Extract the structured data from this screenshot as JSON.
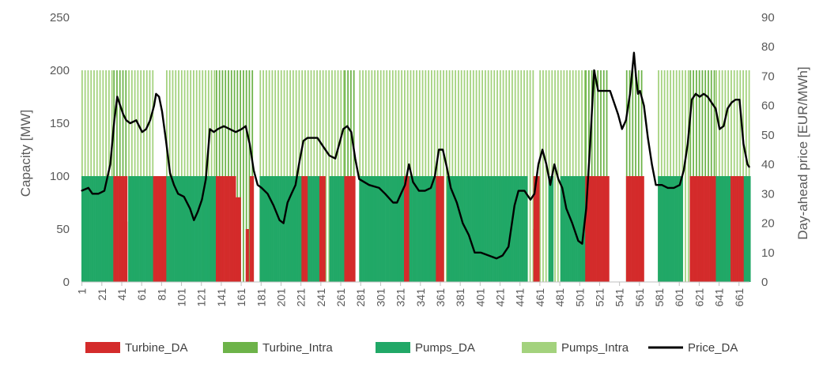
{
  "chart_data": {
    "type": "bar+line",
    "title": "",
    "xlabel": "",
    "ylabel_left": "Capacity [MW]",
    "ylabel_right": "Day-ahead price [EUR/MWh]",
    "ylim_left": [
      0,
      250
    ],
    "yticks_left": [
      0,
      50,
      100,
      150,
      200,
      250
    ],
    "ylim_right": [
      0,
      90
    ],
    "yticks_right": [
      0,
      10,
      20,
      30,
      40,
      50,
      60,
      70,
      80,
      90
    ],
    "xlim": [
      1,
      672
    ],
    "xticks": [
      1,
      21,
      41,
      61,
      81,
      101,
      121,
      141,
      161,
      181,
      201,
      221,
      241,
      261,
      281,
      301,
      321,
      341,
      361,
      381,
      401,
      421,
      441,
      461,
      481,
      501,
      521,
      541,
      561,
      581,
      601,
      621,
      641,
      661
    ],
    "grid": false,
    "legend_position": "bottom",
    "legend": [
      "Turbine_DA",
      "Turbine_Intra",
      "Pumps_DA",
      "Pumps_Intra",
      "Price_DA"
    ],
    "colors": {
      "Turbine_DA": "#d42b2b",
      "Turbine_Intra": "#6db349",
      "Pumps_DA": "#21a867",
      "Pumps_Intra": "#a3d27d",
      "Price_DA": "#000000"
    },
    "bar_series": [
      {
        "name": "Pumps_DA",
        "segments": [
          {
            "from": 1,
            "to": 32,
            "value": 100
          },
          {
            "from": 48,
            "to": 72,
            "value": 100
          },
          {
            "from": 86,
            "to": 135,
            "value": 100
          },
          {
            "from": 180,
            "to": 222,
            "value": 100
          },
          {
            "from": 228,
            "to": 240,
            "value": 100
          },
          {
            "from": 250,
            "to": 268,
            "value": 100
          },
          {
            "from": 280,
            "to": 324,
            "value": 100
          },
          {
            "from": 330,
            "to": 356,
            "value": 100
          },
          {
            "from": 368,
            "to": 448,
            "value": 100
          },
          {
            "from": 470,
            "to": 474,
            "value": 100
          },
          {
            "from": 482,
            "to": 506,
            "value": 100
          },
          {
            "from": 580,
            "to": 604,
            "value": 100
          },
          {
            "from": 638,
            "to": 652,
            "value": 100
          },
          {
            "from": 666,
            "to": 672,
            "value": 100
          }
        ]
      },
      {
        "name": "Turbine_DA",
        "segments": [
          {
            "from": 33,
            "to": 46,
            "value": 100
          },
          {
            "from": 42,
            "to": 46,
            "value": 57
          },
          {
            "from": 73,
            "to": 85,
            "value": 100
          },
          {
            "from": 136,
            "to": 155,
            "value": 100
          },
          {
            "from": 156,
            "to": 160,
            "value": 80
          },
          {
            "from": 166,
            "to": 168,
            "value": 50
          },
          {
            "from": 170,
            "to": 173,
            "value": 100
          },
          {
            "from": 222,
            "to": 227,
            "value": 100
          },
          {
            "from": 240,
            "to": 245,
            "value": 100
          },
          {
            "from": 240,
            "to": 242,
            "value": 57
          },
          {
            "from": 265,
            "to": 275,
            "value": 100
          },
          {
            "from": 325,
            "to": 329,
            "value": 100
          },
          {
            "from": 357,
            "to": 364,
            "value": 100
          },
          {
            "from": 455,
            "to": 460,
            "value": 100
          },
          {
            "from": 455,
            "to": 458,
            "value": 50
          },
          {
            "from": 507,
            "to": 530,
            "value": 100
          },
          {
            "from": 548,
            "to": 565,
            "value": 100
          },
          {
            "from": 612,
            "to": 637,
            "value": 100
          },
          {
            "from": 653,
            "to": 665,
            "value": 100
          }
        ]
      },
      {
        "name": "Turbine_Intra",
        "segments": [
          {
            "from": 33,
            "to": 46,
            "value": 200
          },
          {
            "from": 136,
            "to": 173,
            "value": 200
          },
          {
            "from": 265,
            "to": 275,
            "value": 200
          },
          {
            "from": 507,
            "to": 530,
            "value": 200
          },
          {
            "from": 548,
            "to": 565,
            "value": 200
          },
          {
            "from": 612,
            "to": 637,
            "value": 200
          }
        ]
      },
      {
        "name": "Pumps_Intra",
        "segments": [
          {
            "from": 1,
            "to": 32,
            "value": 200
          },
          {
            "from": 48,
            "to": 72,
            "value": 200
          },
          {
            "from": 86,
            "to": 135,
            "value": 200
          },
          {
            "from": 180,
            "to": 264,
            "value": 200
          },
          {
            "from": 280,
            "to": 454,
            "value": 200
          },
          {
            "from": 461,
            "to": 506,
            "value": 200
          },
          {
            "from": 580,
            "to": 611,
            "value": 200
          },
          {
            "from": 638,
            "to": 672,
            "value": 200
          }
        ]
      }
    ],
    "line_series": {
      "name": "Price_DA",
      "axis": "right",
      "x": [
        1,
        8,
        12,
        18,
        24,
        30,
        34,
        37,
        40,
        43,
        46,
        50,
        56,
        62,
        66,
        70,
        74,
        76,
        79,
        82,
        86,
        90,
        94,
        98,
        104,
        110,
        114,
        118,
        122,
        126,
        130,
        134,
        138,
        144,
        150,
        156,
        162,
        166,
        170,
        174,
        178,
        182,
        188,
        194,
        200,
        204,
        208,
        212,
        216,
        220,
        224,
        228,
        232,
        238,
        244,
        250,
        256,
        260,
        264,
        268,
        272,
        276,
        280,
        290,
        300,
        306,
        314,
        318,
        322,
        326,
        330,
        334,
        340,
        346,
        352,
        356,
        360,
        364,
        368,
        372,
        378,
        384,
        390,
        396,
        402,
        410,
        418,
        424,
        430,
        436,
        440,
        446,
        452,
        456,
        460,
        464,
        468,
        472,
        476,
        480,
        484,
        488,
        494,
        500,
        504,
        508,
        512,
        516,
        520,
        526,
        532,
        536,
        540,
        544,
        548,
        552,
        556,
        558,
        560,
        562,
        566,
        570,
        574,
        578,
        584,
        590,
        596,
        602,
        606,
        610,
        614,
        618,
        622,
        626,
        630,
        634,
        638,
        642,
        646,
        650,
        654,
        658,
        662,
        666,
        670,
        672
      ],
      "y": [
        31,
        32,
        30,
        30,
        31,
        40,
        55,
        63,
        60,
        57,
        55,
        54,
        55,
        51,
        52,
        55,
        60,
        64,
        63,
        58,
        48,
        37,
        33,
        30,
        29,
        25,
        21,
        24,
        28,
        35,
        52,
        51,
        52,
        53,
        52,
        51,
        52,
        53,
        47,
        38,
        33,
        32,
        30,
        26,
        21,
        20,
        27,
        30,
        33,
        41,
        48,
        49,
        49,
        49,
        46,
        43,
        42,
        47,
        52,
        53,
        51,
        42,
        35,
        33,
        32,
        30,
        27,
        27,
        30,
        33,
        40,
        34,
        31,
        31,
        32,
        36,
        45,
        45,
        39,
        32,
        27,
        20,
        16,
        10,
        10,
        9,
        8,
        9,
        12,
        26,
        31,
        31,
        28,
        30,
        40,
        45,
        40,
        33,
        40,
        35,
        32,
        25,
        20,
        14,
        13,
        25,
        47,
        72,
        65,
        65,
        65,
        61,
        57,
        52,
        55,
        64,
        78,
        70,
        64,
        65,
        60,
        49,
        40,
        33,
        33,
        32,
        32,
        33,
        38,
        47,
        62,
        64,
        63,
        64,
        63,
        61,
        59,
        52,
        53,
        59,
        61,
        62,
        62,
        47,
        40,
        39
      ]
    }
  }
}
